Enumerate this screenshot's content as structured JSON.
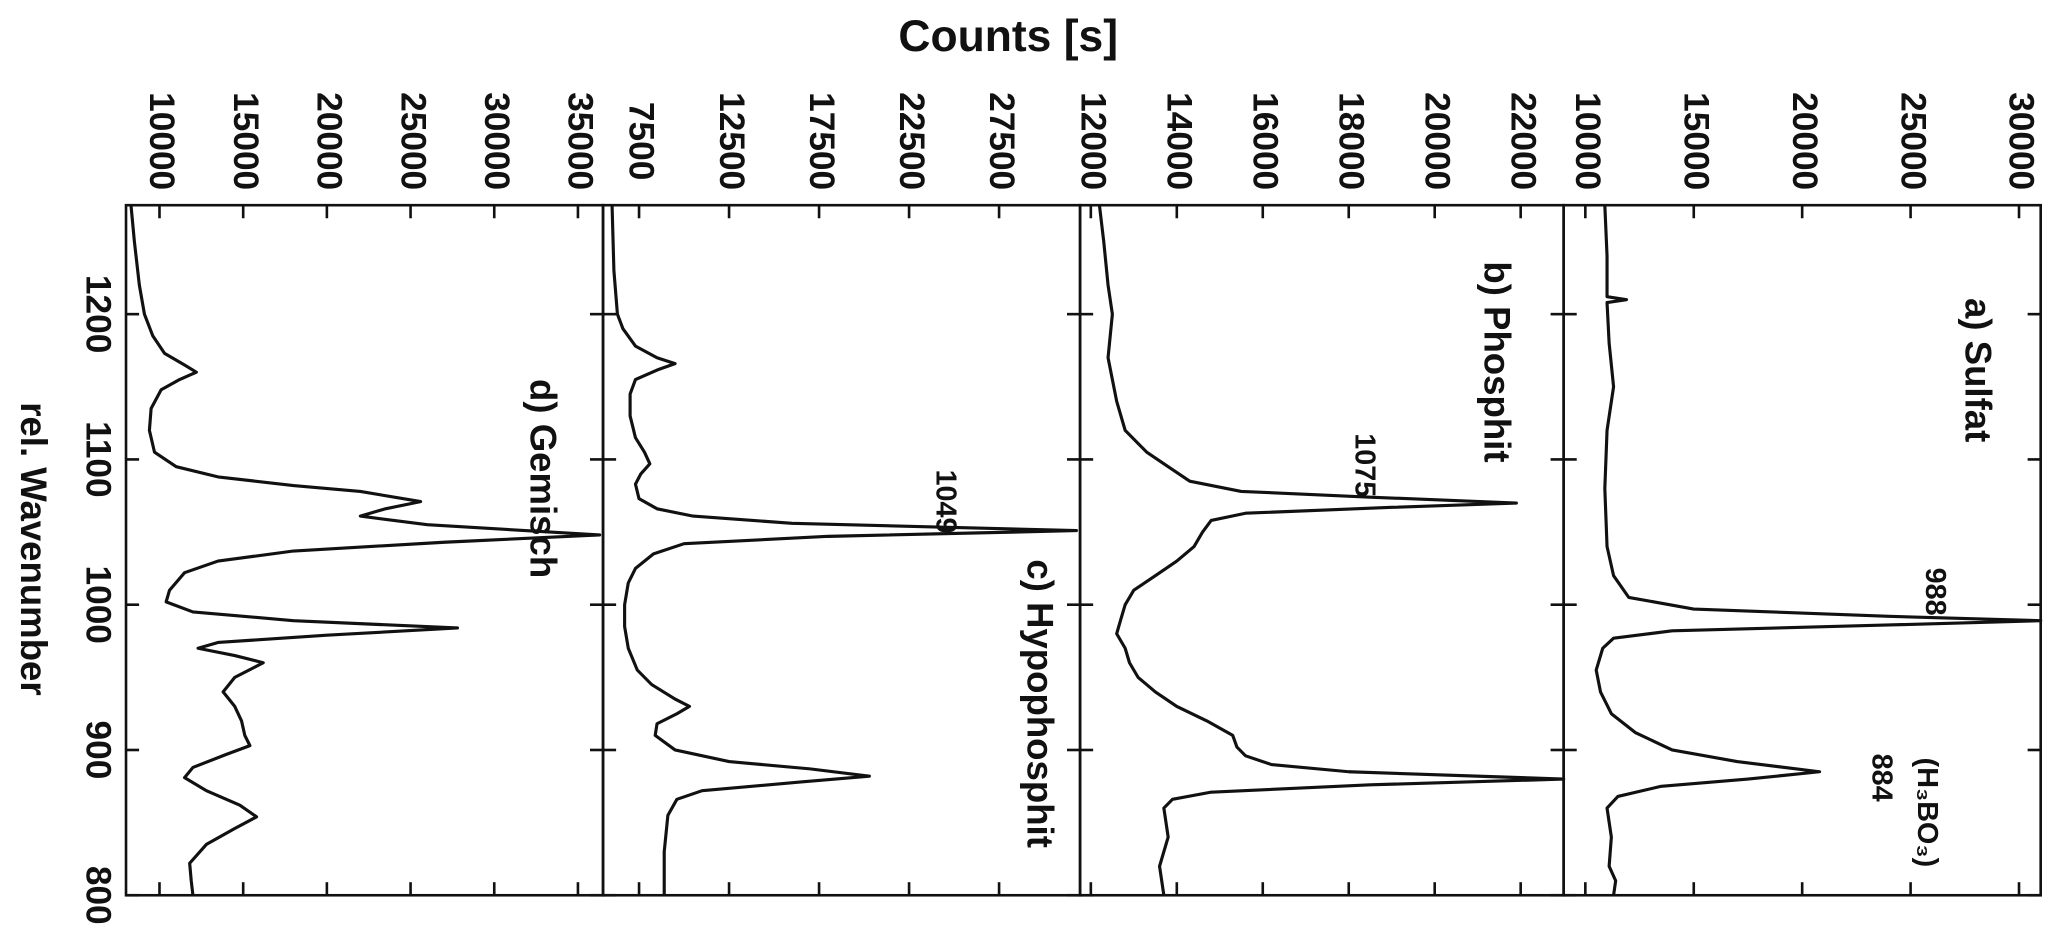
{
  "chart_data": [
    {
      "type": "line",
      "title": "a) Sulfat",
      "ylabel": "Counts [s]",
      "x": [
        1275,
        1240,
        1212,
        1210,
        1208,
        1180,
        1150,
        1120,
        1080,
        1040,
        1020,
        1005,
        997,
        992,
        989,
        986,
        982,
        977,
        970,
        955,
        940,
        925,
        912,
        900,
        892,
        885,
        880,
        875,
        868,
        860,
        840,
        820,
        810,
        800
      ],
      "values": [
        10900,
        11000,
        11000,
        11900,
        11000,
        11100,
        11300,
        11000,
        10900,
        11000,
        11300,
        12000,
        15000,
        24000,
        31000,
        24000,
        14000,
        11300,
        10800,
        10500,
        10700,
        11200,
        12300,
        14000,
        17000,
        20800,
        17500,
        13500,
        11500,
        11000,
        11200,
        11100,
        11400,
        11300
      ],
      "color": "#111111",
      "xlim": [
        800,
        1275
      ],
      "xticks": [
        800,
        900,
        1000,
        1100,
        1200
      ],
      "ylim": [
        9000,
        31000
      ],
      "yticks": [
        10000,
        15000,
        20000,
        25000,
        30000
      ],
      "annotations": [
        {
          "text": "988",
          "x": 1009,
          "y": 26070
        },
        {
          "text": "884",
          "x": 881,
          "y": 23600
        },
        {
          "text": "(H₃BO₃)",
          "x": 857,
          "y": 25700
        }
      ]
    },
    {
      "type": "line",
      "title": "b) Phosphit",
      "x": [
        1275,
        1250,
        1220,
        1200,
        1170,
        1140,
        1120,
        1105,
        1095,
        1085,
        1078,
        1074,
        1070,
        1067,
        1063,
        1058,
        1050,
        1040,
        1030,
        1020,
        1010,
        1000,
        990,
        980,
        970,
        960,
        950,
        940,
        930,
        920,
        910,
        902,
        896,
        890,
        885,
        880,
        876,
        871,
        866,
        860,
        840,
        820,
        800
      ],
      "values": [
        12200,
        12300,
        12400,
        12500,
        12400,
        12600,
        12800,
        13300,
        13800,
        14300,
        15500,
        18500,
        21900,
        19000,
        15600,
        14800,
        14600,
        14400,
        14000,
        13500,
        13000,
        12800,
        12700,
        12600,
        12800,
        12900,
        13100,
        13500,
        14000,
        14700,
        15300,
        15400,
        15600,
        16200,
        18000,
        23000,
        18500,
        14800,
        13900,
        13700,
        13800,
        13600,
        13700
      ],
      "color": "#111111",
      "xlim": [
        800,
        1275
      ],
      "xticks": [
        800,
        900,
        1000,
        1100,
        1200
      ],
      "ylim": [
        11750,
        23000
      ],
      "yticks": [
        12000,
        14000,
        16000,
        18000,
        20000,
        22000
      ],
      "annotations": [
        {
          "text": "1075",
          "x": 1096,
          "y": 18330
        }
      ]
    },
    {
      "type": "line",
      "title": "c) Hypophosphit",
      "x": [
        1275,
        1230,
        1200,
        1190,
        1178,
        1170,
        1166,
        1162,
        1155,
        1145,
        1130,
        1115,
        1105,
        1097,
        1090,
        1083,
        1073,
        1066,
        1061,
        1056,
        1051,
        1047,
        1042,
        1035,
        1025,
        1015,
        1000,
        985,
        970,
        955,
        945,
        935,
        930,
        925,
        918,
        910,
        900,
        892,
        887,
        882,
        878,
        872,
        866,
        855,
        830,
        800
      ],
      "values": [
        6000,
        6100,
        6300,
        6600,
        7300,
        8500,
        9500,
        8600,
        7300,
        7000,
        7000,
        7300,
        7800,
        8100,
        7600,
        7300,
        7500,
        8500,
        10500,
        16000,
        31800,
        18000,
        10000,
        8300,
        7300,
        6900,
        6700,
        6700,
        6900,
        7400,
        8200,
        9500,
        10300,
        9600,
        8500,
        8400,
        9500,
        12500,
        17000,
        20300,
        16500,
        11000,
        9600,
        9100,
        8900,
        8900
      ],
      "color": "#111111",
      "xlim": [
        800,
        1275
      ],
      "xticks": [
        800,
        900,
        1000,
        1100,
        1200
      ],
      "ylim": [
        5500,
        32000
      ],
      "yticks": [
        7500,
        12500,
        17500,
        22500,
        27500
      ],
      "annotations": [
        {
          "text": "1049",
          "x": 1071,
          "y": 24450
        }
      ]
    },
    {
      "type": "line",
      "title": "d) Gemisch",
      "xlabel": "rel. Wavenumber",
      "x": [
        1275,
        1250,
        1220,
        1200,
        1185,
        1173,
        1165,
        1160,
        1155,
        1148,
        1135,
        1120,
        1105,
        1095,
        1088,
        1082,
        1078,
        1071,
        1066,
        1061,
        1055,
        1048,
        1043,
        1037,
        1030,
        1022,
        1010,
        1002,
        995,
        989,
        984,
        979,
        974,
        970,
        965,
        960,
        950,
        940,
        930,
        920,
        910,
        903,
        897,
        888,
        881,
        872,
        862,
        854,
        846,
        835,
        822,
        810,
        800
      ],
      "values": [
        8300,
        8500,
        8800,
        9100,
        9600,
        10300,
        11500,
        12200,
        11200,
        10100,
        9500,
        9400,
        9700,
        11000,
        13500,
        18000,
        22000,
        25600,
        23500,
        22000,
        26000,
        36300,
        27000,
        18000,
        13500,
        11500,
        10600,
        10400,
        12000,
        18000,
        27800,
        20000,
        13500,
        12300,
        14500,
        16200,
        14500,
        13800,
        14500,
        14900,
        15100,
        15400,
        14000,
        12000,
        11500,
        12800,
        14800,
        15800,
        14500,
        12800,
        11800,
        11900,
        12000
      ],
      "color": "#111111",
      "xlim": [
        800,
        1275
      ],
      "xticks": [
        800,
        900,
        1000,
        1100,
        1200
      ],
      "ylim": [
        8000,
        36500
      ],
      "yticks": [
        10000,
        15000,
        20000,
        25000,
        30000,
        35000
      ]
    }
  ]
}
